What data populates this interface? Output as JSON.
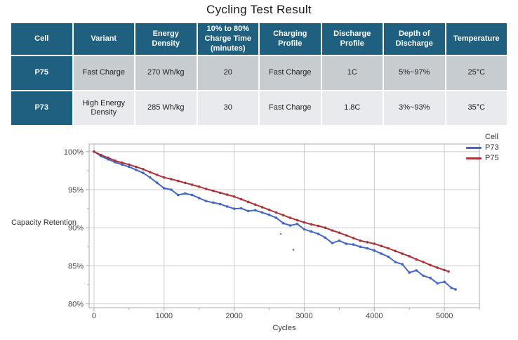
{
  "page": {
    "title": "Cycling Test Result"
  },
  "table": {
    "columns": [
      "Cell",
      "Variant",
      "Energy Density",
      "10% to 80%\nCharge Time\n(minutes)",
      "Charging\nProfile",
      "Discharge\nProfile",
      "Depth of\nDischarge",
      "Temperature"
    ],
    "rows": [
      {
        "cell": "P75",
        "values": [
          "Fast Charge",
          "270 Wh/kg",
          "20",
          "Fast Charge",
          "1C",
          "5%~97%",
          "25°C"
        ]
      },
      {
        "cell": "P73",
        "values": [
          "High Energy\nDensity",
          "285 Wh/kg",
          "30",
          "Fast Charge",
          "1.8C",
          "3%~93%",
          "35°C"
        ]
      }
    ],
    "colors": {
      "header_bg": "#1f5f80",
      "header_text": "#ffffff",
      "label_bg": "#1f5f80",
      "label_text": "#ffffff",
      "row1_bg": "#c7ccd1",
      "row2_bg": "#e8eaed"
    }
  },
  "chart_data": {
    "type": "line",
    "title": "",
    "xlabel": "Cycles",
    "ylabel": "Capacity Retention",
    "legend_title": "Cell",
    "legend_position": "top-right-outside",
    "grid": true,
    "xlim": [
      -70,
      5500
    ],
    "ylim": [
      79.5,
      101
    ],
    "xticks": [
      0,
      1000,
      2000,
      3000,
      4000,
      5000
    ],
    "xtick_labels": [
      "0",
      "1000",
      "2000",
      "3000",
      "4000",
      "5000"
    ],
    "minor_xticks": [
      500,
      1500,
      2500,
      3500,
      4500,
      5500
    ],
    "yticks": [
      80,
      85,
      90,
      95,
      100
    ],
    "ytick_labels": [
      "80%",
      "85%",
      "90%",
      "95%",
      "100%"
    ],
    "minor_yticks": [
      82.5,
      87.5,
      92.5,
      97.5
    ],
    "axis_color": "#a8a8a8",
    "grid_color": "#cbcbcb",
    "tick_text_color": "#444444",
    "series": [
      {
        "name": "P73",
        "color": "#4466c8",
        "points": [
          [
            0,
            100
          ],
          [
            100,
            99.4
          ],
          [
            200,
            99.0
          ],
          [
            300,
            98.6
          ],
          [
            400,
            98.3
          ],
          [
            500,
            98.0
          ],
          [
            600,
            97.6
          ],
          [
            700,
            97.2
          ],
          [
            800,
            96.6
          ],
          [
            900,
            95.9
          ],
          [
            1000,
            95.2
          ],
          [
            1100,
            95.0
          ],
          [
            1200,
            94.3
          ],
          [
            1300,
            94.5
          ],
          [
            1400,
            94.3
          ],
          [
            1500,
            93.9
          ],
          [
            1600,
            93.5
          ],
          [
            1700,
            93.3
          ],
          [
            1800,
            93.1
          ],
          [
            1900,
            92.8
          ],
          [
            2000,
            92.5
          ],
          [
            2100,
            92.55
          ],
          [
            2200,
            92.2
          ],
          [
            2300,
            92.3
          ],
          [
            2400,
            92.0
          ],
          [
            2500,
            91.7
          ],
          [
            2600,
            91.3
          ],
          [
            2700,
            90.6
          ],
          [
            2800,
            90.3
          ],
          [
            2900,
            90.5
          ],
          [
            3000,
            89.8
          ],
          [
            3100,
            89.5
          ],
          [
            3200,
            89.2
          ],
          [
            3300,
            88.7
          ],
          [
            3400,
            88.0
          ],
          [
            3500,
            88.3
          ],
          [
            3600,
            87.9
          ],
          [
            3700,
            87.8
          ],
          [
            3800,
            87.5
          ],
          [
            3900,
            87.3
          ],
          [
            4000,
            87.0
          ],
          [
            4100,
            86.6
          ],
          [
            4200,
            86.2
          ],
          [
            4300,
            85.5
          ],
          [
            4400,
            85.2
          ],
          [
            4500,
            84.1
          ],
          [
            4600,
            84.4
          ],
          [
            4700,
            83.7
          ],
          [
            4800,
            83.4
          ],
          [
            4900,
            82.7
          ],
          [
            5000,
            82.9
          ],
          [
            5100,
            82.1
          ],
          [
            5160,
            81.9
          ]
        ]
      },
      {
        "name": "P75",
        "color": "#ab353b",
        "points": [
          [
            0,
            100
          ],
          [
            100,
            99.55
          ],
          [
            200,
            99.2
          ],
          [
            300,
            98.8
          ],
          [
            400,
            98.55
          ],
          [
            500,
            98.3
          ],
          [
            600,
            98.0
          ],
          [
            700,
            97.7
          ],
          [
            800,
            97.3
          ],
          [
            900,
            96.95
          ],
          [
            1000,
            96.6
          ],
          [
            1100,
            96.4
          ],
          [
            1200,
            96.15
          ],
          [
            1300,
            95.9
          ],
          [
            1400,
            95.65
          ],
          [
            1500,
            95.4
          ],
          [
            1600,
            95.1
          ],
          [
            1700,
            94.85
          ],
          [
            1800,
            94.6
          ],
          [
            1900,
            94.35
          ],
          [
            2000,
            94.1
          ],
          [
            2100,
            93.75
          ],
          [
            2200,
            93.4
          ],
          [
            2300,
            93.05
          ],
          [
            2400,
            92.7
          ],
          [
            2500,
            92.35
          ],
          [
            2600,
            92.0
          ],
          [
            2700,
            91.65
          ],
          [
            2800,
            91.3
          ],
          [
            2900,
            91.0
          ],
          [
            3000,
            90.7
          ],
          [
            3100,
            90.45
          ],
          [
            3200,
            90.25
          ],
          [
            3300,
            90.0
          ],
          [
            3400,
            89.65
          ],
          [
            3500,
            89.35
          ],
          [
            3600,
            89.0
          ],
          [
            3700,
            88.65
          ],
          [
            3800,
            88.3
          ],
          [
            3900,
            88.1
          ],
          [
            4000,
            87.9
          ],
          [
            4100,
            87.6
          ],
          [
            4200,
            87.3
          ],
          [
            4300,
            86.95
          ],
          [
            4400,
            86.6
          ],
          [
            4500,
            86.25
          ],
          [
            4600,
            85.85
          ],
          [
            4700,
            85.5
          ],
          [
            4800,
            85.1
          ],
          [
            4900,
            84.75
          ],
          [
            5000,
            84.45
          ],
          [
            5060,
            84.25
          ]
        ]
      }
    ],
    "outlier_points": [
      {
        "x": 2665,
        "y": 89.2,
        "color": "#c04a4a"
      },
      {
        "x": 2845,
        "y": 87.1,
        "color": "#9c4444"
      }
    ]
  }
}
